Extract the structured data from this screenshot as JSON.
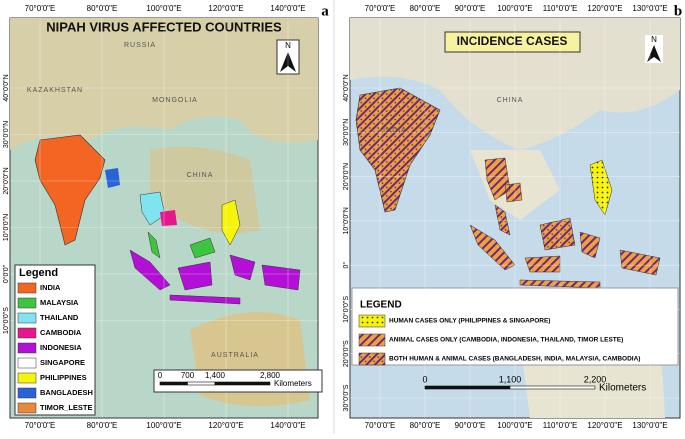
{
  "panels": [
    {
      "label": "a",
      "title": "NIPAH VIRUS AFFECTED COUNTRIES",
      "longitudes": [
        "70°0'0\"E",
        "80°0'0\"E",
        "100°0'0\"E",
        "120°0'0\"E",
        "140°0'0\"E"
      ],
      "latitudes": [
        "40°0'0\"N",
        "30°0'0\"N",
        "20°0'0\"N",
        "10°0'0\"N",
        "0°0'0\"",
        "10°0'0\"S"
      ],
      "map_labels": [
        "RUSSIA",
        "KAZAKHSTAN",
        "MONGOLIA",
        "CHINA",
        "AUSTRALIA"
      ],
      "north": "N",
      "legend": {
        "title": "Legend",
        "items": [
          {
            "label": "INDIA",
            "color": "#f26522"
          },
          {
            "label": "MALAYSIA",
            "color": "#3ec43e"
          },
          {
            "label": "THAILAND",
            "color": "#7fe3f0"
          },
          {
            "label": "CAMBODIA",
            "color": "#e6178c"
          },
          {
            "label": "INDONESIA",
            "color": "#b40fd6"
          },
          {
            "label": "SINGAPORE",
            "color": "#ffffff"
          },
          {
            "label": "PHILIPPINES",
            "color": "#f5f50a"
          },
          {
            "label": "BANGLADESH",
            "color": "#2a62d8"
          },
          {
            "label": "TIMOR_LESTE",
            "color": "#e98a3a"
          }
        ]
      },
      "scale": {
        "ticks": [
          "0",
          "700",
          "1,400",
          "2,800"
        ],
        "unit": "Kilometers"
      }
    },
    {
      "label": "b",
      "title": "INCIDENCE CASES",
      "longitudes": [
        "70°0'0\"E",
        "80°0'0\"E",
        "90°0'0\"E",
        "100°0'0\"E",
        "110°0'0\"E",
        "120°0'0\"E",
        "130°0'0\"E"
      ],
      "latitudes": [
        "40°0'0\"N",
        "30°0'0\"N",
        "20°0'0\"N",
        "10°0'0\"N",
        "0°",
        "10°0'0\"S",
        "20°0'0\"S",
        "30°0'0\"S"
      ],
      "map_labels": [
        "CHINA",
        "INDIA"
      ],
      "north": "N",
      "legend": {
        "title": "LEGEND",
        "items": [
          {
            "label": "HUMAN CASES ONLY (PHILIPPINES & SINGAPORE)",
            "color": "dots"
          },
          {
            "label": "ANIMAL CASES ONLY (CAMBODIA, INDONESIA, THAILAND, TIMOR LESTE)",
            "color": "hatch"
          },
          {
            "label": "BOTH HUMAN & ANIMAL CASES (BANGLADESH, INDIA, MALAYSIA, CAMBODIA)",
            "color": "both"
          }
        ]
      },
      "scale": {
        "ticks": [
          "0",
          "1,100",
          "2,200"
        ],
        "unit": "Kilometers"
      }
    }
  ]
}
